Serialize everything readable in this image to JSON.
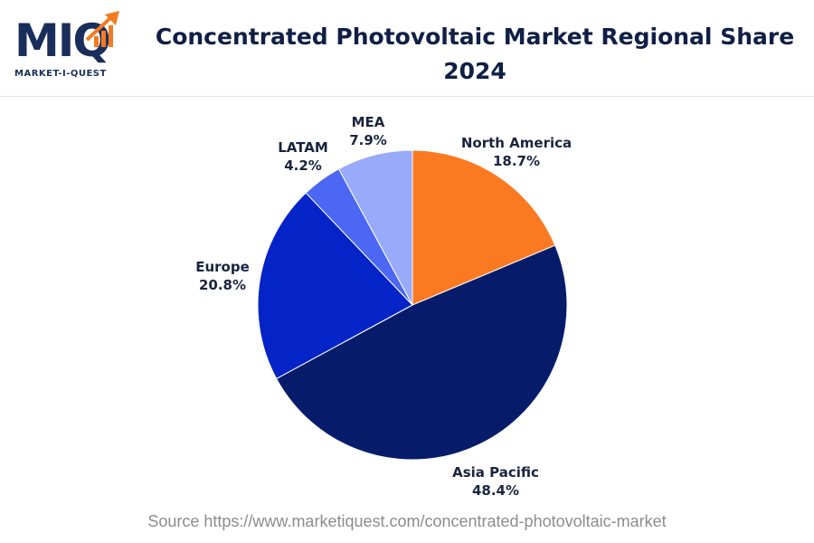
{
  "logo": {
    "letters": "MIQ",
    "tagline": "MARKET-I-QUEST",
    "colors": {
      "navy": "#1a2e5c",
      "orange": "#f47b20"
    }
  },
  "title": "Concentrated Photovoltaic Market Regional Share 2024",
  "source": "Source https://www.marketiquest.com/concentrated-photovoltaic-market",
  "chart_data": {
    "type": "pie",
    "title": "Concentrated Photovoltaic Market Regional Share 2024",
    "start_angle_deg": 0,
    "direction": "clockwise",
    "slices": [
      {
        "label": "North America",
        "value": 18.7,
        "display": "18.7%",
        "color": "#fb7921"
      },
      {
        "label": "Asia Pacific",
        "value": 48.4,
        "display": "48.4%",
        "color": "#061c6b"
      },
      {
        "label": "Europe",
        "value": 20.8,
        "display": "20.8%",
        "color": "#0424c8"
      },
      {
        "label": "LATAM",
        "value": 4.2,
        "display": "4.2%",
        "color": "#4b67f4"
      },
      {
        "label": "MEA",
        "value": 7.9,
        "display": "7.9%",
        "color": "#9aaafb"
      }
    ]
  }
}
